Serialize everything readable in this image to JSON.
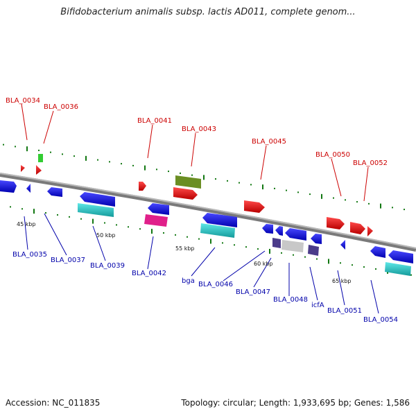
{
  "title": "Bifidobacterium animalis subsp. lactis AD011, complete genom...",
  "footer": {
    "accession": "Accession: NC_011835",
    "summary": "Topology: circular; Length: 1,933,695 bp; Genes: 1,586"
  },
  "scale_labels": [
    "45 kbp",
    "50 kbp",
    "55 kbp",
    "60 kbp",
    "65 kbp"
  ],
  "genes_forward": [
    {
      "name": "BLA_0034"
    },
    {
      "name": "BLA_0036"
    },
    {
      "name": "BLA_0041"
    },
    {
      "name": "BLA_0043"
    },
    {
      "name": "BLA_0045"
    },
    {
      "name": "BLA_0050"
    },
    {
      "name": "BLA_0052"
    }
  ],
  "genes_reverse": [
    {
      "name": "BLA_0035"
    },
    {
      "name": "BLA_0037"
    },
    {
      "name": "BLA_0039"
    },
    {
      "name": "BLA_0042"
    },
    {
      "name": "bga"
    },
    {
      "name": "BLA_0046"
    },
    {
      "name": "BLA_0047"
    },
    {
      "name": "BLA_0048"
    },
    {
      "name": "icfA"
    },
    {
      "name": "BLA_0051"
    },
    {
      "name": "BLA_0054"
    }
  ],
  "colors": {
    "forward_label": "#cc0000",
    "reverse_label": "#0000aa",
    "forward_gene": "#e41a1c",
    "reverse_gene": "#1010e0",
    "rna": "#2ad4d4",
    "olive": "#6b8e23",
    "magenta": "#e0208a",
    "purple": "#4b3c8a",
    "grey_feature": "#c8c8c8",
    "green_feature": "#33cc33",
    "tick": "#118811",
    "backbone": "#888888"
  }
}
